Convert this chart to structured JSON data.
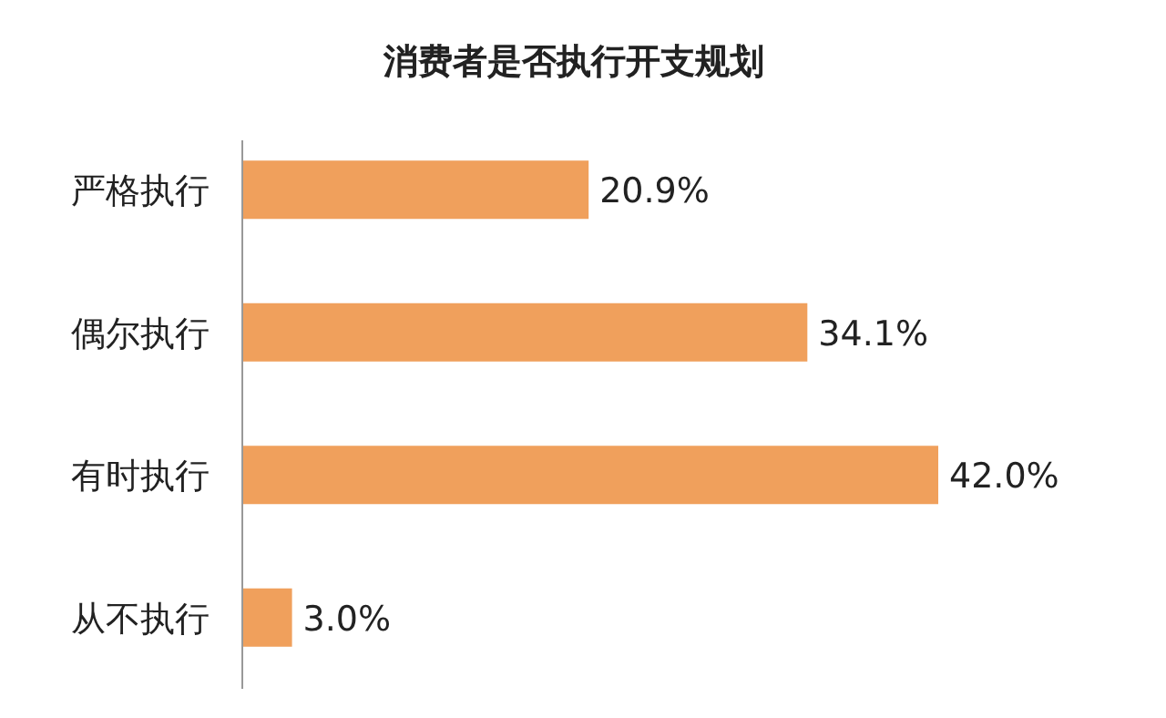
{
  "chart_data": {
    "type": "bar",
    "orientation": "horizontal",
    "title": "消费者是否执行开支规划",
    "categories": [
      "严格执行",
      "偶尔执行",
      "有时执行",
      "从不执行"
    ],
    "values": [
      20.9,
      34.1,
      42.0,
      3.0
    ],
    "value_labels": [
      "20.9%",
      "34.1%",
      "42.0%",
      "3.0%"
    ],
    "color": "#f0a05c"
  }
}
